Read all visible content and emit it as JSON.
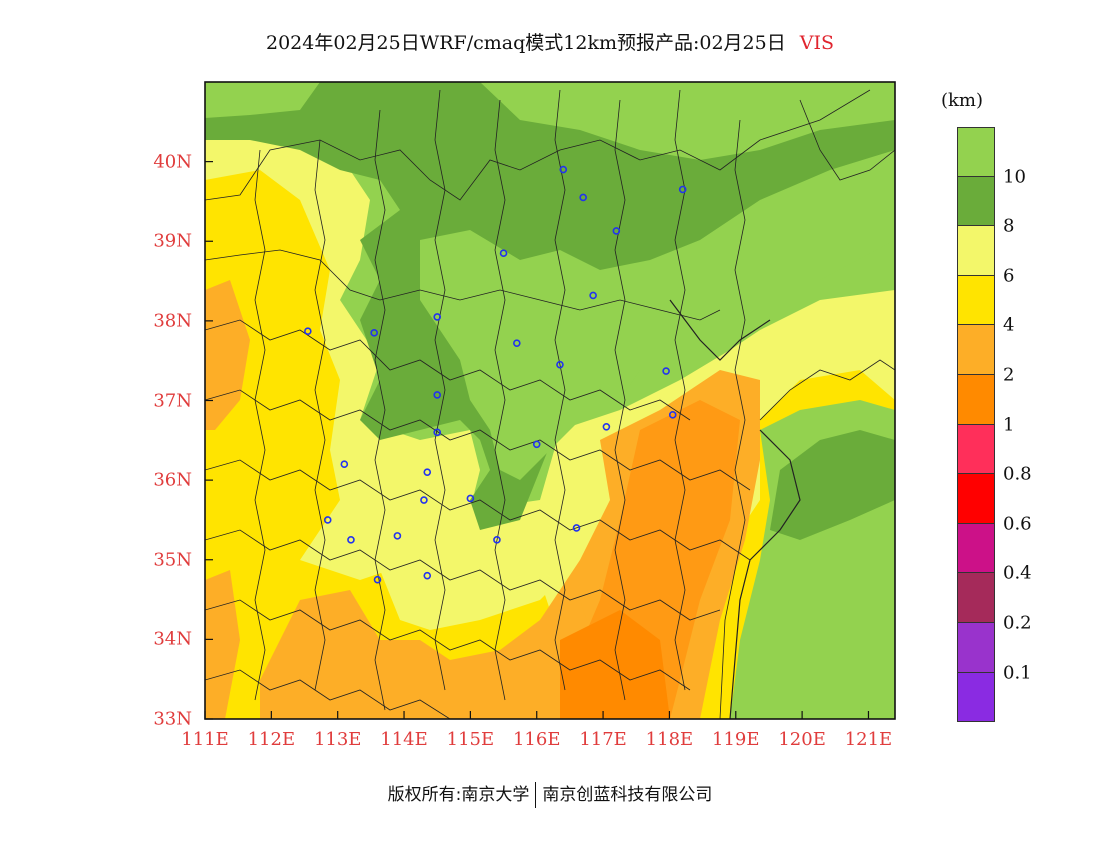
{
  "title": {
    "text": "2024年02月25日WRF/cmaq模式12km预报产品:02月25日",
    "variable": "VIS"
  },
  "map": {
    "lat_labels": [
      "40N",
      "39N",
      "38N",
      "37N",
      "36N",
      "35N",
      "34N",
      "33N"
    ],
    "lon_labels": [
      "111E",
      "112E",
      "113E",
      "114E",
      "115E",
      "116E",
      "117E",
      "118E",
      "119E",
      "120E",
      "121E"
    ],
    "lat_range": [
      33,
      41
    ],
    "lon_range": [
      111,
      121.4
    ],
    "station_markers": [
      [
        116.4,
        39.9
      ],
      [
        116.7,
        39.55
      ],
      [
        118.2,
        39.65
      ],
      [
        117.2,
        39.13
      ],
      [
        115.5,
        38.85
      ],
      [
        116.85,
        38.32
      ],
      [
        114.5,
        38.05
      ],
      [
        112.55,
        37.87
      ],
      [
        113.55,
        37.85
      ],
      [
        115.7,
        37.72
      ],
      [
        116.35,
        37.45
      ],
      [
        117.95,
        37.37
      ],
      [
        114.5,
        37.07
      ],
      [
        118.05,
        36.82
      ],
      [
        117.05,
        36.67
      ],
      [
        114.5,
        36.6
      ],
      [
        116.0,
        36.45
      ],
      [
        113.1,
        36.2
      ],
      [
        114.35,
        36.1
      ],
      [
        114.3,
        35.75
      ],
      [
        115.0,
        35.77
      ],
      [
        112.85,
        35.5
      ],
      [
        116.6,
        35.4
      ],
      [
        113.9,
        35.3
      ],
      [
        113.2,
        35.25
      ],
      [
        115.4,
        35.25
      ],
      [
        114.35,
        34.8
      ],
      [
        113.6,
        34.75
      ]
    ]
  },
  "colorbar": {
    "unit": "(km)",
    "levels": [
      {
        "color": "#93d24f",
        "label": ""
      },
      {
        "color": "#6aac3a",
        "label": "10"
      },
      {
        "color": "#f3f76a",
        "label": "8"
      },
      {
        "color": "#ffe400",
        "label": "6"
      },
      {
        "color": "#fdae27",
        "label": "4"
      },
      {
        "color": "#ff8a00",
        "label": "2"
      },
      {
        "color": "#ff2f5a",
        "label": "1"
      },
      {
        "color": "#ff0000",
        "label": "0.8"
      },
      {
        "color": "#cc1188",
        "label": "0.6"
      },
      {
        "color": "#a52a5a",
        "label": "0.4"
      },
      {
        "color": "#9933cc",
        "label": "0.2"
      },
      {
        "color": "#8a2be2",
        "label": "0.1"
      }
    ]
  },
  "footer": {
    "left": "版权所有:南京大学",
    "right": "南京创蓝科技有限公司"
  }
}
